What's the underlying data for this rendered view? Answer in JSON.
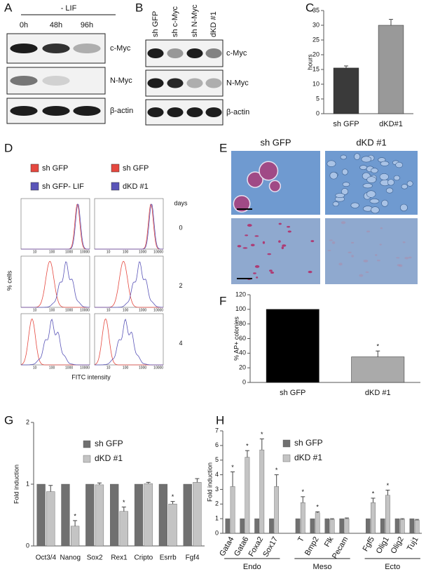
{
  "panels": {
    "A": {
      "label": "A",
      "treatment": "- LIF",
      "lanes": [
        "0h",
        "48h",
        "96h"
      ],
      "bands": [
        "c-Myc",
        "N-Myc",
        "β-actin"
      ]
    },
    "B": {
      "label": "B",
      "lanes": [
        "sh GFP",
        "sh c-Myc",
        "sh N-Myc",
        "dKD #1"
      ],
      "bands": [
        "c-Myc",
        "N-Myc",
        "β-actin"
      ]
    },
    "D": {
      "label": "D",
      "legend": [
        {
          "name": "sh GFP",
          "color": "#e5483f"
        },
        {
          "name": "sh GFP- LIF",
          "color": "#5a55b8"
        },
        {
          "name": "sh GFP",
          "color": "#e5483f"
        },
        {
          "name": "dKD #1",
          "color": "#5a55b8"
        }
      ],
      "days_label": "days",
      "days": [
        "0",
        "2",
        "4"
      ],
      "ylabel": "% cells",
      "xlabel": "FITC intensity",
      "xticks": [
        "10",
        "100",
        "1000",
        "10000"
      ]
    },
    "E": {
      "label": "E",
      "columns": [
        "sh GFP",
        "dKD #1"
      ]
    }
  },
  "chart_data": [
    {
      "label": "C",
      "type": "bar",
      "ylabel": "hours",
      "categories": [
        "sh GFP",
        "dKD#1"
      ],
      "values": [
        15.5,
        30
      ],
      "errors": [
        0.7,
        2
      ],
      "colors": [
        "#3a3a3a",
        "#999999"
      ],
      "ylim": [
        0,
        35
      ],
      "yticks": [
        0,
        5,
        10,
        15,
        20,
        25,
        30,
        35
      ]
    },
    {
      "label": "F",
      "type": "bar",
      "ylabel": "% AP+ colonies",
      "categories": [
        "sh GFP",
        "dKD #1"
      ],
      "values": [
        100,
        35
      ],
      "errors": [
        null,
        8
      ],
      "colors": [
        "#000000",
        "#aaaaaa"
      ],
      "significance": [
        null,
        "*"
      ],
      "ylim": [
        0,
        120
      ],
      "yticks": [
        0,
        20,
        40,
        60,
        80,
        100,
        120
      ]
    },
    {
      "label": "G",
      "type": "grouped-bar",
      "ylabel": "Fold induction",
      "categories": [
        "Oct3/4",
        "Nanog",
        "Sox2",
        "Rex1",
        "Cripto",
        "Esrrb",
        "Fgf4"
      ],
      "series": [
        {
          "name": "sh GFP",
          "color": "#707070",
          "values": [
            1,
            1,
            1,
            1,
            1,
            1,
            1
          ],
          "errors": [
            null,
            null,
            null,
            null,
            null,
            null,
            null
          ]
        },
        {
          "name": "dKD #1",
          "color": "#c4c4c4",
          "values": [
            0.88,
            0.32,
            0.99,
            0.56,
            1.01,
            0.68,
            1.03
          ],
          "errors": [
            0.1,
            0.09,
            0.03,
            0.07,
            0.02,
            0.04,
            0.06
          ]
        }
      ],
      "significance": [
        null,
        "*",
        null,
        "*",
        null,
        "*",
        null
      ],
      "ylim": [
        0,
        2
      ],
      "yticks": [
        0,
        1,
        2
      ]
    },
    {
      "label": "H",
      "type": "grouped-bar",
      "ylabel": "Fold induction",
      "categories": [
        "Gata4",
        "Gata6",
        "Foxa2",
        "Sox17",
        "T",
        "Bmp2",
        "Flk",
        "Pecam",
        "Fgf5",
        "Olig1",
        "Olig2",
        "Tuj1"
      ],
      "groups": [
        "Endo",
        "Meso",
        "Ecto"
      ],
      "series": [
        {
          "name": "sh GFP",
          "color": "#707070",
          "values": [
            1,
            1,
            1,
            1,
            1,
            1,
            1,
            1,
            1,
            1,
            1,
            1
          ],
          "errors": [
            null,
            null,
            null,
            null,
            null,
            null,
            null,
            null,
            null,
            null,
            null,
            null
          ]
        },
        {
          "name": "dKD #1",
          "color": "#c4c4c4",
          "values": [
            3.2,
            5.2,
            5.7,
            3.2,
            2.1,
            1.4,
            0.95,
            1.0,
            2.1,
            2.6,
            0.95,
            0.9
          ],
          "errors": [
            1.0,
            0.45,
            0.75,
            0.8,
            0.4,
            0.07,
            0.05,
            0.05,
            0.3,
            0.35,
            0.05,
            0.05
          ]
        }
      ],
      "significance": [
        "*",
        "*",
        "*",
        "*",
        "*",
        "*",
        null,
        null,
        "*",
        "*",
        null,
        null
      ],
      "ylim": [
        0,
        7
      ],
      "yticks": [
        0,
        1,
        2,
        3,
        4,
        5,
        6,
        7
      ]
    }
  ]
}
